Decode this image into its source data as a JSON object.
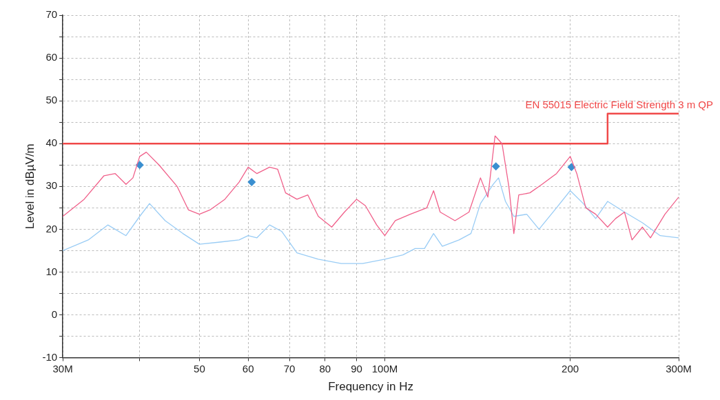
{
  "chart_data": {
    "type": "line",
    "xlabel": "Frequency in Hz",
    "ylabel": "Level in dBµV/m",
    "log": "x",
    "grid": true,
    "legend": false,
    "xlim": [
      30,
      300
    ],
    "xticks": [
      {
        "value": 30,
        "label": "30M"
      },
      {
        "value": 40,
        "label": null
      },
      50,
      60,
      70,
      80,
      90,
      {
        "value": 100,
        "label": "100M"
      },
      200,
      {
        "value": 300,
        "label": "300M"
      }
    ],
    "ylim": [
      -10,
      70
    ],
    "yticks": [
      -10,
      {
        "value": -5,
        "label": null
      },
      0,
      {
        "value": 5,
        "label": null
      },
      10,
      {
        "value": 15,
        "label": null
      },
      20,
      {
        "value": 25,
        "label": null
      },
      30,
      {
        "value": 35,
        "label": null
      },
      40,
      {
        "value": 45,
        "label": null
      },
      50,
      {
        "value": 55,
        "label": null
      },
      60,
      {
        "value": 65,
        "label": null
      },
      70
    ],
    "series": [
      {
        "color": "#f0608a",
        "x": [
          30,
          32.5,
          35,
          36.5,
          38,
          39,
          40,
          41,
          43,
          46,
          48,
          50,
          52,
          55,
          58,
          60,
          62,
          65,
          67,
          69,
          72,
          75,
          78,
          82,
          86,
          90,
          93,
          97,
          100,
          104,
          110,
          117,
          120,
          123,
          130,
          137,
          143,
          147,
          151,
          155,
          159,
          162,
          165,
          172,
          180,
          190,
          200,
          205,
          212,
          220,
          230,
          237,
          245,
          252,
          262,
          270,
          285,
          300
        ],
        "values": [
          23,
          27,
          32.5,
          33,
          30.5,
          32,
          37,
          38,
          35,
          30,
          24.5,
          23.5,
          24.5,
          27,
          31,
          34.5,
          33,
          34.5,
          34,
          28.5,
          27,
          28,
          23,
          20.5,
          24,
          27,
          25.5,
          21,
          18.5,
          22,
          23.5,
          25,
          29,
          24,
          22,
          24,
          32,
          27.5,
          41.8,
          40,
          30,
          19,
          28,
          28.5,
          30.5,
          33,
          37,
          33,
          25,
          23.5,
          20.5,
          22.5,
          24,
          17.5,
          20.5,
          18,
          23.5,
          27.5
        ]
      },
      {
        "color": "#99ccf5",
        "x": [
          30,
          33,
          35.5,
          38,
          40,
          41.5,
          44,
          47,
          50,
          54,
          58,
          60,
          62,
          65,
          68,
          72,
          78,
          85,
          92,
          100,
          107,
          112,
          116,
          120,
          124,
          132,
          138,
          143,
          150,
          153,
          157,
          162,
          170,
          178,
          190,
          200,
          210,
          220,
          230,
          245,
          262,
          280,
          300
        ],
        "values": [
          15,
          17.5,
          21,
          18.5,
          23,
          26,
          22,
          19,
          16.5,
          17,
          17.5,
          18.5,
          18,
          21,
          19.5,
          14.5,
          13,
          12,
          12,
          13,
          14,
          15.5,
          15.5,
          19,
          16,
          17.5,
          19,
          26,
          30.5,
          32,
          26.5,
          23,
          23.5,
          20,
          25,
          29,
          26,
          22.5,
          26.5,
          24,
          21.5,
          18.5,
          18
        ]
      },
      {
        "name": "EN 55015 Electric Field Strength 3 m QP",
        "color": "#f04848",
        "x": [
          30,
          230,
          230,
          300
        ],
        "values": [
          40,
          40,
          47,
          47
        ]
      },
      {
        "type": "scatter",
        "marker": "diamond",
        "color": "#3a8fd0",
        "x": [
          40,
          60.8,
          151.5,
          201
        ],
        "values": [
          35,
          31,
          34.7,
          34.5
        ]
      }
    ]
  }
}
